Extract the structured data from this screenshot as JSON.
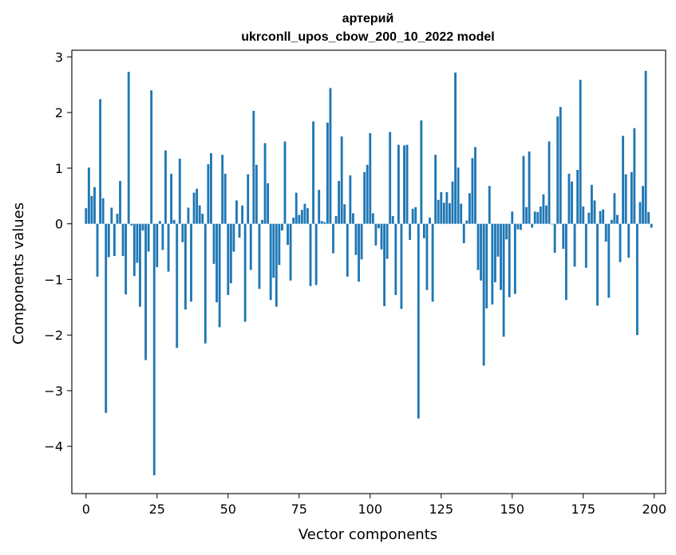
{
  "chart_data": {
    "type": "bar",
    "title": "артерий",
    "subtitle": "ukrconll_upos_cbow_200_10_2022 model",
    "xlabel": "Vector components",
    "ylabel": "Components values",
    "xlim": [
      -5,
      204
    ],
    "ylim": [
      -4.85,
      3.12
    ],
    "xticks": [
      0,
      25,
      50,
      75,
      100,
      125,
      150,
      175,
      200
    ],
    "xtick_labels": [
      "0",
      "25",
      "50",
      "75",
      "100",
      "125",
      "150",
      "175",
      "200"
    ],
    "yticks": [
      -4,
      -3,
      -2,
      -1,
      0,
      1,
      2,
      3
    ],
    "ytick_labels": [
      "−4",
      "−3",
      "−2",
      "−1",
      "0",
      "1",
      "2",
      "3"
    ],
    "grid": false,
    "bar_color": "#1f77b4",
    "values": [
      0.28,
      1.01,
      0.5,
      0.66,
      -0.95,
      2.24,
      0.46,
      -3.4,
      -0.6,
      0.29,
      -0.58,
      0.18,
      0.77,
      -0.58,
      -1.27,
      2.73,
      -0.03,
      -0.94,
      -0.7,
      -1.49,
      -0.12,
      -2.45,
      -0.5,
      2.4,
      -4.52,
      -0.78,
      0.05,
      -0.47,
      1.32,
      -0.86,
      0.9,
      0.07,
      -2.23,
      1.17,
      -0.33,
      -1.54,
      0.29,
      -1.4,
      0.56,
      0.63,
      0.33,
      0.18,
      -2.15,
      1.07,
      1.27,
      -0.72,
      -1.41,
      -1.86,
      1.24,
      0.9,
      -1.28,
      -1.07,
      -0.5,
      0.42,
      -0.25,
      0.33,
      -1.76,
      0.89,
      -0.83,
      2.03,
      1.06,
      -1.17,
      0.07,
      1.45,
      0.73,
      -1.37,
      -0.97,
      -1.49,
      -0.74,
      -0.12,
      1.48,
      -0.38,
      -1.02,
      0.11,
      0.56,
      0.16,
      0.25,
      0.36,
      0.28,
      -1.12,
      1.84,
      -1.1,
      0.61,
      0.05,
      0.03,
      1.82,
      2.44,
      -0.53,
      0.14,
      0.77,
      1.57,
      0.35,
      -0.95,
      0.87,
      0.19,
      -0.56,
      -1.04,
      -0.64,
      0.93,
      1.06,
      1.63,
      0.19,
      -0.39,
      -0.08,
      -0.46,
      -1.48,
      -0.63,
      1.65,
      0.14,
      -1.28,
      1.42,
      -1.53,
      1.41,
      1.42,
      -0.29,
      0.27,
      0.3,
      -3.5,
      1.86,
      -0.26,
      -1.19,
      0.11,
      -1.4,
      1.24,
      0.43,
      0.57,
      0.38,
      0.57,
      0.37,
      0.76,
      2.72,
      1.01,
      0.36,
      -0.35,
      0.06,
      0.55,
      1.18,
      1.38,
      -0.83,
      -1.02,
      -2.55,
      -1.52,
      0.68,
      -1.45,
      -1.05,
      -0.59,
      -1.19,
      -2.03,
      -0.28,
      -1.32,
      0.22,
      -1.26,
      -0.1,
      -0.11,
      1.22,
      0.3,
      1.3,
      -0.07,
      0.22,
      0.21,
      0.31,
      0.53,
      0.33,
      1.48,
      -0.01,
      -0.52,
      1.93,
      2.1,
      -0.45,
      -1.37,
      0.9,
      0.76,
      -0.77,
      0.97,
      2.59,
      0.31,
      -0.79,
      0.2,
      0.7,
      0.42,
      -1.47,
      0.23,
      0.26,
      -0.32,
      -1.33,
      0.07,
      0.55,
      0.16,
      -0.69,
      1.58,
      0.89,
      -0.61,
      0.93,
      1.72,
      -2.0,
      0.39,
      0.68,
      2.75,
      0.21,
      -0.07
    ]
  }
}
